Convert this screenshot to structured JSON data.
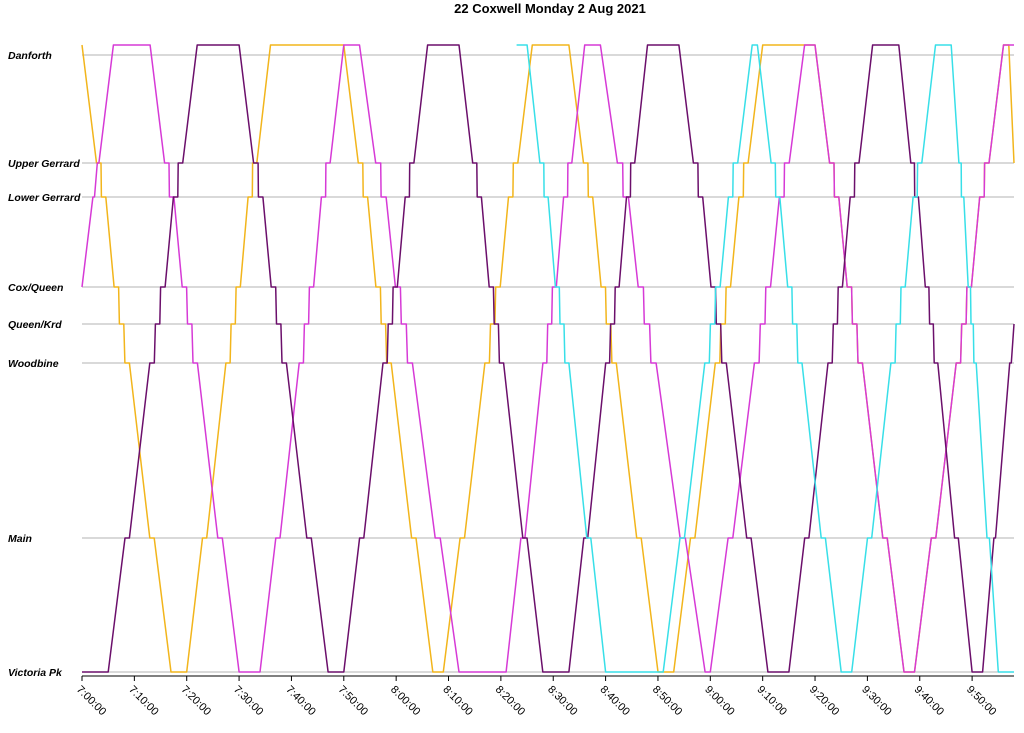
{
  "chart_data": {
    "type": "line",
    "title": "22 Coxwell Monday 2 Aug 2021",
    "xlabel": "",
    "ylabel": "",
    "x_axis": {
      "min": "7:00:00",
      "max": "9:58:00",
      "ticks": [
        "7:00:00",
        "7:10:00",
        "7:20:00",
        "7:30:00",
        "7:40:00",
        "7:50:00",
        "8:00:00",
        "8:10:00",
        "8:20:00",
        "8:30:00",
        "8:40:00",
        "8:50:00",
        "9:00:00",
        "9:10:00",
        "9:20:00",
        "9:30:00",
        "9:40:00",
        "9:50:00"
      ]
    },
    "y_axis": {
      "categories": [
        "Danforth",
        "Upper Gerrard",
        "Lower Gerrard",
        "Cox/Queen",
        "Queen/Krd",
        "Woodbine",
        "Main",
        "Victoria Pk"
      ],
      "order_top_to_bottom": true
    },
    "grid": true,
    "legend": "none",
    "series": [
      {
        "color": "#f2b51c",
        "segments": [
          {
            "from_stop": "Danforth",
            "to_stop": "Victoria Pk",
            "start": "7:00:00",
            "end": "7:17:00"
          },
          {
            "stop": "Victoria Pk",
            "start": "7:17:00",
            "end": "7:20:00"
          },
          {
            "from_stop": "Victoria Pk",
            "to_stop": "Danforth",
            "start": "7:20:00",
            "end": "7:36:00"
          },
          {
            "stop": "Danforth",
            "start": "7:36:00",
            "end": "7:50:00"
          },
          {
            "from_stop": "Danforth",
            "to_stop": "Victoria Pk",
            "start": "7:50:00",
            "end": "8:07:00"
          },
          {
            "stop": "Victoria Pk",
            "start": "8:07:00",
            "end": "8:09:00"
          },
          {
            "from_stop": "Victoria Pk",
            "to_stop": "Danforth",
            "start": "8:09:00",
            "end": "8:26:00"
          },
          {
            "stop": "Danforth",
            "start": "8:26:00",
            "end": "8:33:00"
          },
          {
            "from_stop": "Danforth",
            "to_stop": "Victoria Pk",
            "start": "8:33:00",
            "end": "8:50:00"
          },
          {
            "stop": "Victoria Pk",
            "start": "8:50:00",
            "end": "8:53:00"
          },
          {
            "from_stop": "Victoria Pk",
            "to_stop": "Danforth",
            "start": "8:53:00",
            "end": "9:10:00"
          },
          {
            "stop": "Danforth",
            "start": "9:10:00",
            "end": "9:20:00"
          },
          {
            "from_stop": "Danforth",
            "to_stop": "Victoria Pk",
            "start": "9:20:00",
            "end": "9:37:00"
          },
          {
            "stop": "Victoria Pk",
            "start": "9:37:00",
            "end": "9:39:00"
          },
          {
            "from_stop": "Victoria Pk",
            "to_stop": "Danforth",
            "start": "9:39:00",
            "end": "9:56:00"
          },
          {
            "stop": "Danforth",
            "start": "9:56:00",
            "end": "9:57:00"
          },
          {
            "from_stop": "Danforth",
            "to_stop": "Upper Gerrard",
            "start": "9:57:00",
            "end": "9:58:00"
          }
        ]
      },
      {
        "color": "#d63ad6",
        "segments": [
          {
            "from_stop": "Cox/Queen",
            "to_stop": "Danforth",
            "start": "7:00:00",
            "end": "7:06:00"
          },
          {
            "stop": "Danforth",
            "start": "7:06:00",
            "end": "7:13:00"
          },
          {
            "from_stop": "Danforth",
            "to_stop": "Victoria Pk",
            "start": "7:13:00",
            "end": "7:30:00"
          },
          {
            "stop": "Victoria Pk",
            "start": "7:30:00",
            "end": "7:34:00"
          },
          {
            "from_stop": "Victoria Pk",
            "to_stop": "Danforth",
            "start": "7:34:00",
            "end": "7:50:00"
          },
          {
            "stop": "Danforth",
            "start": "7:50:00",
            "end": "7:53:00"
          },
          {
            "from_stop": "Danforth",
            "to_stop": "Victoria Pk",
            "start": "7:53:00",
            "end": "8:12:00"
          },
          {
            "stop": "Victoria Pk",
            "start": "8:12:00",
            "end": "8:21:00"
          },
          {
            "from_stop": "Victoria Pk",
            "to_stop": "Danforth",
            "start": "8:21:00",
            "end": "8:36:00"
          },
          {
            "stop": "Danforth",
            "start": "8:36:00",
            "end": "8:39:00"
          },
          {
            "from_stop": "Danforth",
            "to_stop": "Victoria Pk",
            "start": "8:39:00",
            "end": "8:59:00"
          },
          {
            "stop": "Victoria Pk",
            "start": "8:59:00",
            "end": "9:00:00"
          },
          {
            "from_stop": "Victoria Pk",
            "to_stop": "Danforth",
            "start": "9:00:00",
            "end": "9:18:00"
          },
          {
            "stop": "Danforth",
            "start": "9:18:00",
            "end": "9:20:00"
          },
          {
            "from_stop": "Danforth",
            "to_stop": "Victoria Pk",
            "start": "9:20:00",
            "end": "9:37:00"
          },
          {
            "stop": "Victoria Pk",
            "start": "9:37:00",
            "end": "9:39:00"
          },
          {
            "from_stop": "Victoria Pk",
            "to_stop": "Danforth",
            "start": "9:39:00",
            "end": "9:56:00"
          },
          {
            "stop": "Danforth",
            "start": "9:56:00",
            "end": "9:58:00"
          }
        ]
      },
      {
        "color": "#6b0f6b",
        "segments": [
          {
            "stop": "Victoria Pk",
            "start": "7:00:00",
            "end": "7:05:00"
          },
          {
            "from_stop": "Victoria Pk",
            "to_stop": "Danforth",
            "start": "7:05:00",
            "end": "7:22:00"
          },
          {
            "stop": "Danforth",
            "start": "7:22:00",
            "end": "7:30:00"
          },
          {
            "from_stop": "Danforth",
            "to_stop": "Victoria Pk",
            "start": "7:30:00",
            "end": "7:47:00"
          },
          {
            "stop": "Victoria Pk",
            "start": "7:47:00",
            "end": "7:50:00"
          },
          {
            "from_stop": "Victoria Pk",
            "to_stop": "Danforth",
            "start": "7:50:00",
            "end": "8:06:00"
          },
          {
            "stop": "Danforth",
            "start": "8:06:00",
            "end": "8:12:00"
          },
          {
            "from_stop": "Danforth",
            "to_stop": "Victoria Pk",
            "start": "8:12:00",
            "end": "8:28:00"
          },
          {
            "stop": "Victoria Pk",
            "start": "8:28:00",
            "end": "8:33:00"
          },
          {
            "from_stop": "Victoria Pk",
            "to_stop": "Danforth",
            "start": "8:33:00",
            "end": "8:48:00"
          },
          {
            "stop": "Danforth",
            "start": "8:48:00",
            "end": "8:54:00"
          },
          {
            "from_stop": "Danforth",
            "to_stop": "Victoria Pk",
            "start": "8:54:00",
            "end": "9:11:00"
          },
          {
            "stop": "Victoria Pk",
            "start": "9:11:00",
            "end": "9:15:00"
          },
          {
            "from_stop": "Victoria Pk",
            "to_stop": "Danforth",
            "start": "9:15:00",
            "end": "9:31:00"
          },
          {
            "stop": "Danforth",
            "start": "9:31:00",
            "end": "9:36:00"
          },
          {
            "from_stop": "Danforth",
            "to_stop": "Victoria Pk",
            "start": "9:36:00",
            "end": "9:50:00"
          },
          {
            "stop": "Victoria Pk",
            "start": "9:50:00",
            "end": "9:52:00"
          },
          {
            "from_stop": "Victoria Pk",
            "to_stop": "Queen/Krd",
            "start": "9:52:00",
            "end": "9:58:00"
          }
        ]
      },
      {
        "color": "#38dfe8",
        "segments": [
          {
            "stop": "Danforth",
            "start": "8:23:00",
            "end": "8:25:00"
          },
          {
            "from_stop": "Danforth",
            "to_stop": "Victoria Pk",
            "start": "8:25:00",
            "end": "8:40:00"
          },
          {
            "stop": "Victoria Pk",
            "start": "8:40:00",
            "end": "8:51:00"
          },
          {
            "from_stop": "Victoria Pk",
            "to_stop": "Danforth",
            "start": "8:51:00",
            "end": "9:08:00"
          },
          {
            "stop": "Danforth",
            "start": "9:08:00",
            "end": "9:09:00"
          },
          {
            "from_stop": "Danforth",
            "to_stop": "Victoria Pk",
            "start": "9:09:00",
            "end": "9:25:00"
          },
          {
            "stop": "Victoria Pk",
            "start": "9:25:00",
            "end": "9:27:00"
          },
          {
            "from_stop": "Victoria Pk",
            "to_stop": "Danforth",
            "start": "9:27:00",
            "end": "9:43:00"
          },
          {
            "stop": "Danforth",
            "start": "9:43:00",
            "end": "9:46:00"
          },
          {
            "from_stop": "Danforth",
            "to_stop": "Victoria Pk",
            "start": "9:46:00",
            "end": "9:55:00"
          },
          {
            "stop": "Victoria Pk",
            "start": "9:55:00",
            "end": "9:58:00"
          }
        ]
      }
    ]
  }
}
